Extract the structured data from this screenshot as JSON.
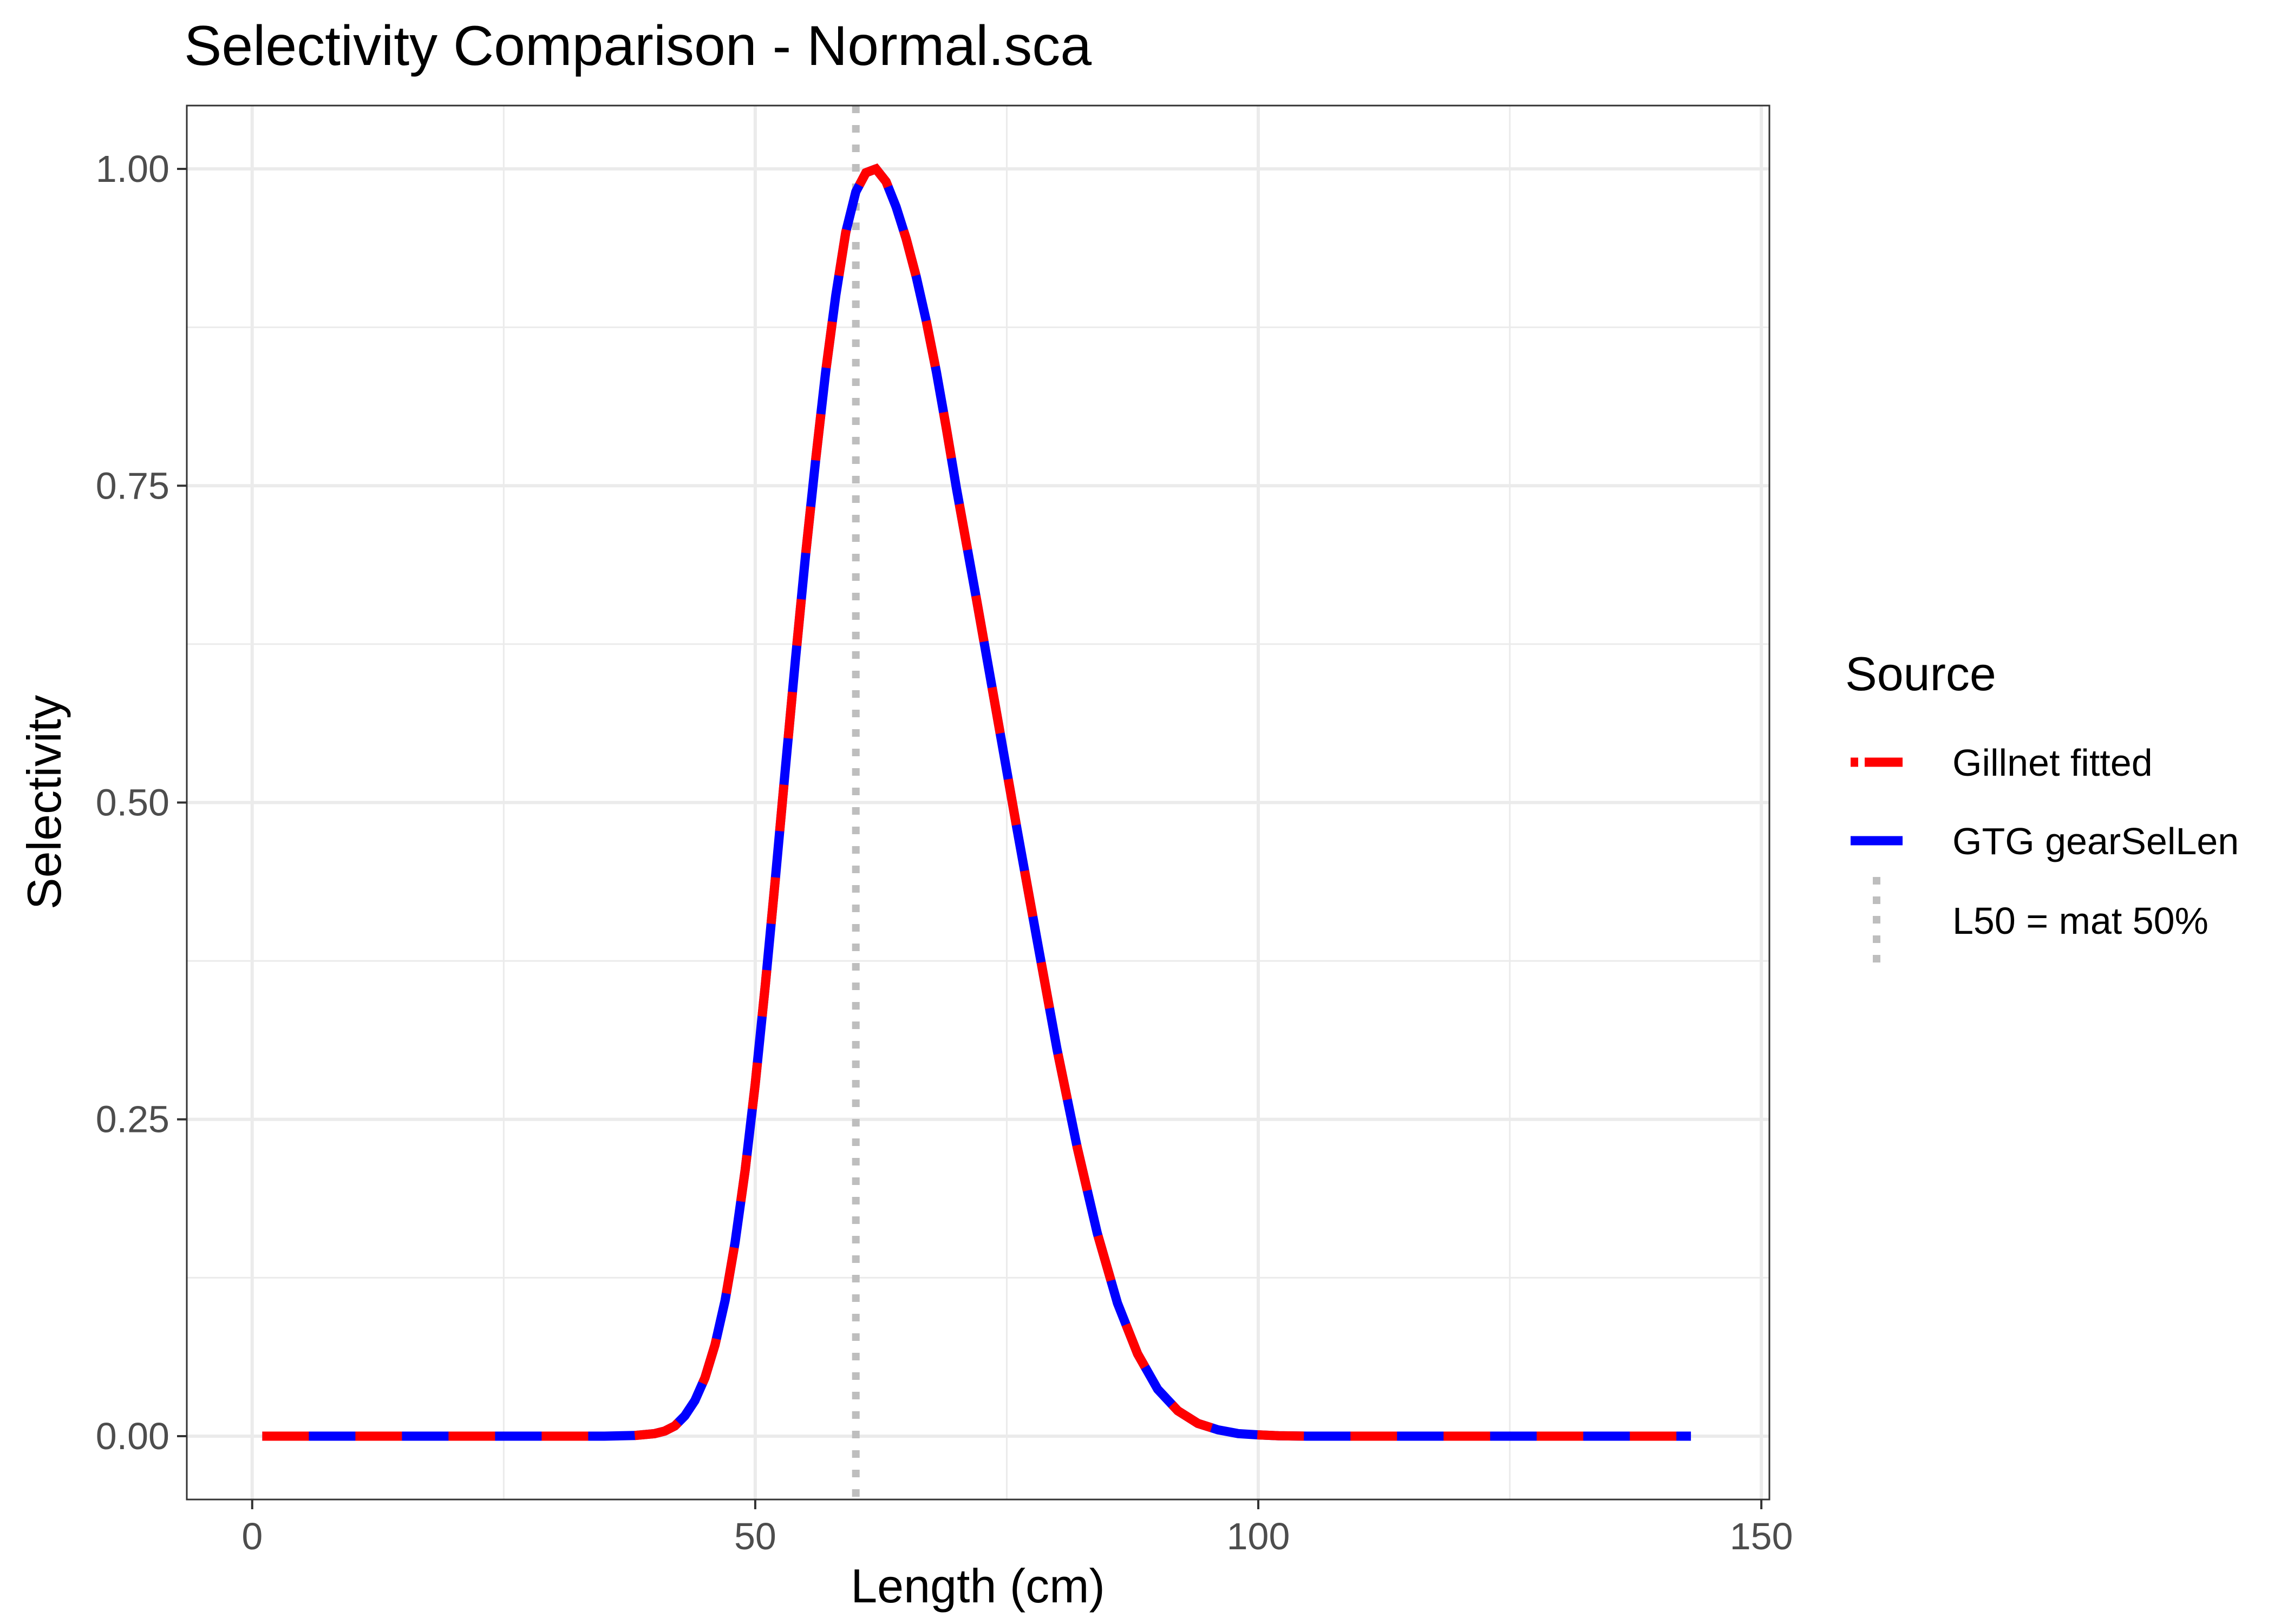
{
  "chart_data": {
    "type": "line",
    "title": "Selectivity Comparison - Normal.sca",
    "xlabel": "Length (cm)",
    "ylabel": "Selectivity",
    "xlim": [
      -6.5,
      150.8
    ],
    "ylim": [
      -0.05,
      1.05
    ],
    "x_ticks": [
      0,
      50,
      100,
      150
    ],
    "x_tick_labels": [
      "0",
      "50",
      "100",
      "150"
    ],
    "y_ticks": [
      0,
      0.25,
      0.5,
      0.75,
      1
    ],
    "y_tick_labels": [
      "0.00",
      "0.25",
      "0.50",
      "0.75",
      "1.00"
    ],
    "grid": true,
    "legend_position": "right",
    "legend_title": "Source",
    "x": [
      1,
      5,
      10,
      15,
      20,
      25,
      30,
      35,
      38,
      40,
      41,
      42,
      43,
      44,
      45,
      46,
      47,
      48,
      49,
      50,
      51,
      52,
      53,
      54,
      55,
      56,
      57,
      58,
      59,
      60,
      61,
      62,
      63,
      64,
      65,
      66,
      67,
      68,
      69,
      70,
      72,
      74,
      76,
      78,
      80,
      82,
      84,
      86,
      88,
      90,
      92,
      94,
      96,
      98,
      100,
      102,
      105,
      110,
      115,
      120,
      125,
      130,
      135,
      140,
      143
    ],
    "series": [
      {
        "name": "Gillnet fitted",
        "color": "#ff0000",
        "values": [
          0,
          0,
          0,
          0,
          0,
          0,
          0,
          0,
          0.0005,
          0.002,
          0.004,
          0.008,
          0.016,
          0.028,
          0.046,
          0.072,
          0.107,
          0.153,
          0.21,
          0.278,
          0.356,
          0.44,
          0.527,
          0.613,
          0.695,
          0.77,
          0.84,
          0.9,
          0.95,
          0.982,
          0.997,
          1.0,
          0.99,
          0.97,
          0.945,
          0.915,
          0.88,
          0.84,
          0.795,
          0.748,
          0.66,
          0.57,
          0.48,
          0.392,
          0.305,
          0.228,
          0.16,
          0.105,
          0.065,
          0.037,
          0.02,
          0.01,
          0.005,
          0.002,
          0.001,
          0.0003,
          0,
          0,
          0,
          0,
          0,
          0,
          0,
          0,
          0
        ]
      },
      {
        "name": "GTG gearSelLen",
        "color": "#0000ff",
        "values": [
          0,
          0,
          0,
          0,
          0,
          0,
          0,
          0,
          0.0005,
          0.002,
          0.004,
          0.008,
          0.016,
          0.028,
          0.046,
          0.072,
          0.107,
          0.153,
          0.21,
          0.278,
          0.356,
          0.44,
          0.527,
          0.613,
          0.695,
          0.77,
          0.84,
          0.9,
          0.95,
          0.982,
          0.997,
          1.0,
          0.99,
          0.97,
          0.945,
          0.915,
          0.88,
          0.84,
          0.795,
          0.748,
          0.66,
          0.57,
          0.48,
          0.392,
          0.305,
          0.228,
          0.16,
          0.105,
          0.065,
          0.037,
          0.02,
          0.01,
          0.005,
          0.002,
          0.001,
          0.0003,
          0,
          0,
          0,
          0,
          0,
          0,
          0,
          0,
          0
        ]
      }
    ],
    "reference_lines": [
      {
        "name": "L50 = mat 50%",
        "orientation": "vertical",
        "x": 60,
        "color": "#bebebe",
        "style": "dotted"
      }
    ],
    "legend_entries": [
      {
        "label": "Gillnet fitted",
        "color": "#ff0000",
        "style": "dashed"
      },
      {
        "label": "GTG gearSelLen",
        "color": "#0000ff",
        "style": "solid"
      },
      {
        "label": "L50 = mat 50%",
        "color": "#bebebe",
        "style": "dotted"
      }
    ]
  }
}
